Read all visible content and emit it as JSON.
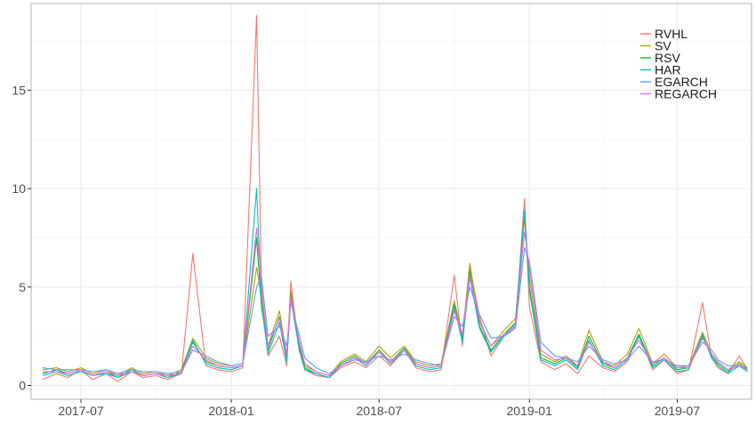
{
  "chart_data": {
    "type": "line",
    "title": "",
    "xlabel": "",
    "ylabel": "",
    "x_range": [
      "2017-05-01",
      "2019-09-30"
    ],
    "ylim": [
      -0.7,
      19.4
    ],
    "grid": true,
    "legend_position": "top-right",
    "x_ticks": [
      {
        "date": "2017-07-01",
        "label": "2017-07"
      },
      {
        "date": "2018-01-01",
        "label": "2018-01"
      },
      {
        "date": "2018-07-01",
        "label": "2018-07"
      },
      {
        "date": "2019-01-01",
        "label": "2019-01"
      },
      {
        "date": "2019-07-01",
        "label": "2019-07"
      }
    ],
    "y_ticks": [
      0,
      5,
      10,
      15
    ],
    "x": [
      "2017-05-15",
      "2017-06-01",
      "2017-06-15",
      "2017-07-01",
      "2017-07-15",
      "2017-08-01",
      "2017-08-15",
      "2017-09-01",
      "2017-09-15",
      "2017-10-01",
      "2017-10-15",
      "2017-11-01",
      "2017-11-15",
      "2017-12-01",
      "2017-12-15",
      "2018-01-01",
      "2018-01-15",
      "2018-02-01",
      "2018-02-07",
      "2018-02-15",
      "2018-03-01",
      "2018-03-10",
      "2018-03-15",
      "2018-03-25",
      "2018-04-01",
      "2018-04-15",
      "2018-05-01",
      "2018-05-15",
      "2018-06-01",
      "2018-06-15",
      "2018-07-01",
      "2018-07-15",
      "2018-08-01",
      "2018-08-15",
      "2018-09-01",
      "2018-09-15",
      "2018-10-01",
      "2018-10-11",
      "2018-10-20",
      "2018-11-01",
      "2018-11-15",
      "2018-12-01",
      "2018-12-15",
      "2018-12-26",
      "2019-01-01",
      "2019-01-15",
      "2019-02-01",
      "2019-02-15",
      "2019-03-01",
      "2019-03-15",
      "2019-04-01",
      "2019-04-15",
      "2019-05-01",
      "2019-05-15",
      "2019-06-01",
      "2019-06-15",
      "2019-07-01",
      "2019-07-15",
      "2019-08-01",
      "2019-08-12",
      "2019-08-20",
      "2019-09-01",
      "2019-09-15",
      "2019-09-25"
    ],
    "series": [
      {
        "name": "RVHL",
        "color": "#F8766D",
        "values": [
          0.3,
          0.6,
          0.4,
          0.8,
          0.3,
          0.6,
          0.2,
          0.7,
          0.4,
          0.5,
          0.3,
          0.6,
          6.7,
          1.0,
          0.8,
          0.7,
          0.9,
          18.8,
          5.0,
          1.5,
          2.5,
          1.0,
          5.3,
          1.8,
          0.8,
          0.5,
          0.4,
          0.9,
          1.2,
          0.9,
          1.5,
          1.0,
          1.8,
          0.9,
          0.7,
          0.8,
          5.6,
          2.0,
          6.0,
          3.5,
          1.5,
          2.5,
          3.0,
          9.5,
          4.0,
          1.2,
          0.8,
          1.1,
          0.6,
          1.5,
          0.9,
          0.7,
          1.2,
          2.6,
          0.8,
          1.3,
          0.6,
          0.8,
          4.2,
          1.4,
          0.9,
          0.6,
          1.5,
          0.8
        ]
      },
      {
        "name": "SV",
        "color": "#B79F00",
        "values": [
          0.8,
          0.9,
          0.7,
          0.9,
          0.6,
          0.8,
          0.5,
          0.9,
          0.6,
          0.7,
          0.5,
          0.8,
          2.4,
          1.4,
          1.1,
          1.0,
          1.1,
          6.0,
          4.5,
          2.0,
          3.8,
          1.5,
          4.8,
          2.2,
          1.0,
          0.7,
          0.5,
          1.2,
          1.6,
          1.2,
          2.0,
          1.4,
          2.0,
          1.2,
          1.0,
          1.1,
          4.3,
          2.5,
          6.2,
          3.2,
          2.0,
          2.8,
          3.4,
          8.5,
          5.5,
          1.6,
          1.2,
          1.5,
          1.0,
          2.8,
          1.2,
          1.0,
          1.6,
          2.9,
          1.1,
          1.6,
          0.9,
          1.0,
          2.7,
          1.6,
          1.2,
          0.8,
          1.2,
          0.9
        ]
      },
      {
        "name": "RSV",
        "color": "#00BA38",
        "values": [
          0.6,
          0.8,
          0.6,
          0.8,
          0.5,
          0.7,
          0.4,
          0.8,
          0.5,
          0.6,
          0.4,
          0.7,
          2.2,
          1.2,
          1.0,
          0.9,
          1.0,
          7.5,
          4.0,
          1.8,
          3.5,
          1.3,
          4.6,
          2.0,
          0.9,
          0.6,
          0.4,
          1.1,
          1.5,
          1.1,
          1.8,
          1.2,
          1.9,
          1.1,
          0.9,
          1.0,
          4.1,
          2.3,
          5.8,
          3.0,
          1.8,
          2.6,
          3.2,
          8.8,
          5.0,
          1.4,
          1.1,
          1.4,
          0.9,
          2.5,
          1.1,
          0.9,
          1.4,
          2.6,
          1.0,
          1.4,
          0.8,
          0.9,
          2.5,
          1.5,
          1.1,
          0.7,
          1.1,
          0.8
        ]
      },
      {
        "name": "HAR",
        "color": "#00BFC4",
        "values": [
          0.5,
          0.7,
          0.5,
          0.7,
          0.5,
          0.6,
          0.4,
          0.7,
          0.5,
          0.6,
          0.4,
          0.6,
          2.3,
          1.1,
          0.9,
          0.8,
          1.0,
          10.0,
          4.2,
          1.6,
          3.2,
          1.2,
          4.4,
          1.9,
          0.8,
          0.6,
          0.4,
          1.0,
          1.4,
          1.0,
          1.7,
          1.1,
          1.8,
          1.0,
          0.8,
          0.9,
          4.0,
          2.2,
          5.5,
          2.9,
          1.7,
          2.5,
          3.1,
          8.9,
          4.8,
          1.3,
          1.0,
          1.3,
          0.8,
          2.3,
          1.0,
          0.8,
          1.3,
          2.5,
          0.9,
          1.3,
          0.7,
          0.8,
          2.6,
          1.4,
          1.0,
          0.6,
          1.0,
          0.7
        ]
      },
      {
        "name": "EGARCH",
        "color": "#619CFF",
        "values": [
          0.9,
          0.8,
          0.8,
          0.8,
          0.7,
          0.8,
          0.6,
          0.8,
          0.7,
          0.7,
          0.6,
          0.7,
          1.8,
          1.5,
          1.2,
          1.0,
          1.1,
          5.0,
          5.5,
          2.5,
          3.0,
          2.0,
          4.2,
          2.6,
          1.4,
          0.9,
          0.6,
          1.0,
          1.3,
          1.2,
          1.5,
          1.3,
          1.6,
          1.3,
          1.1,
          1.0,
          3.5,
          3.0,
          5.0,
          3.6,
          2.4,
          2.5,
          2.9,
          7.0,
          6.3,
          2.2,
          1.5,
          1.4,
          1.2,
          2.0,
          1.3,
          1.1,
          1.3,
          2.0,
          1.2,
          1.3,
          1.0,
          1.0,
          2.2,
          1.8,
          1.3,
          1.0,
          1.0,
          0.9
        ]
      },
      {
        "name": "REGARCH",
        "color": "#F564E3",
        "values": [
          0.7,
          0.7,
          0.6,
          0.8,
          0.5,
          0.7,
          0.5,
          0.7,
          0.5,
          0.6,
          0.5,
          0.6,
          2.0,
          1.3,
          1.0,
          0.9,
          1.0,
          8.0,
          5.0,
          2.0,
          3.4,
          1.6,
          4.5,
          2.3,
          1.1,
          0.7,
          0.5,
          1.0,
          1.4,
          1.1,
          1.7,
          1.2,
          1.8,
          1.1,
          0.9,
          1.0,
          3.8,
          2.6,
          5.6,
          3.3,
          2.0,
          2.6,
          3.0,
          7.8,
          6.0,
          1.8,
          1.3,
          1.4,
          1.0,
          2.2,
          1.2,
          0.9,
          1.4,
          2.3,
          1.1,
          1.4,
          0.9,
          0.9,
          2.4,
          1.6,
          1.2,
          0.8,
          1.0,
          0.8
        ]
      }
    ]
  }
}
